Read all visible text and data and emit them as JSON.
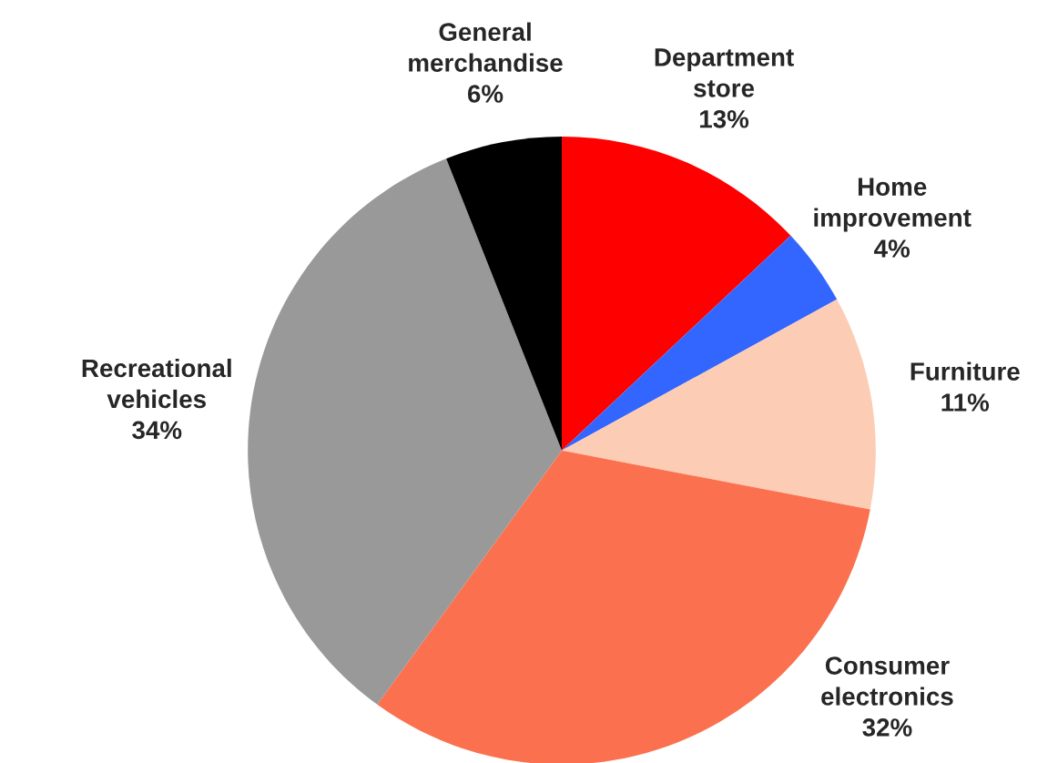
{
  "chart_data": {
    "type": "pie",
    "categories": [
      "Department\nstore",
      "Home\nimprovement",
      "Furniture",
      "Consumer\nelectronics",
      "Recreational\nvehicles",
      "General\nmerchandise"
    ],
    "values": [
      13,
      4,
      11,
      32,
      34,
      6
    ],
    "value_labels": [
      "13%",
      "4%",
      "11%",
      "32%",
      "34%",
      "6%"
    ],
    "colors": [
      "#ff0000",
      "#3366ff",
      "#fccdb4",
      "#fb7150",
      "#999999",
      "#000000"
    ]
  }
}
